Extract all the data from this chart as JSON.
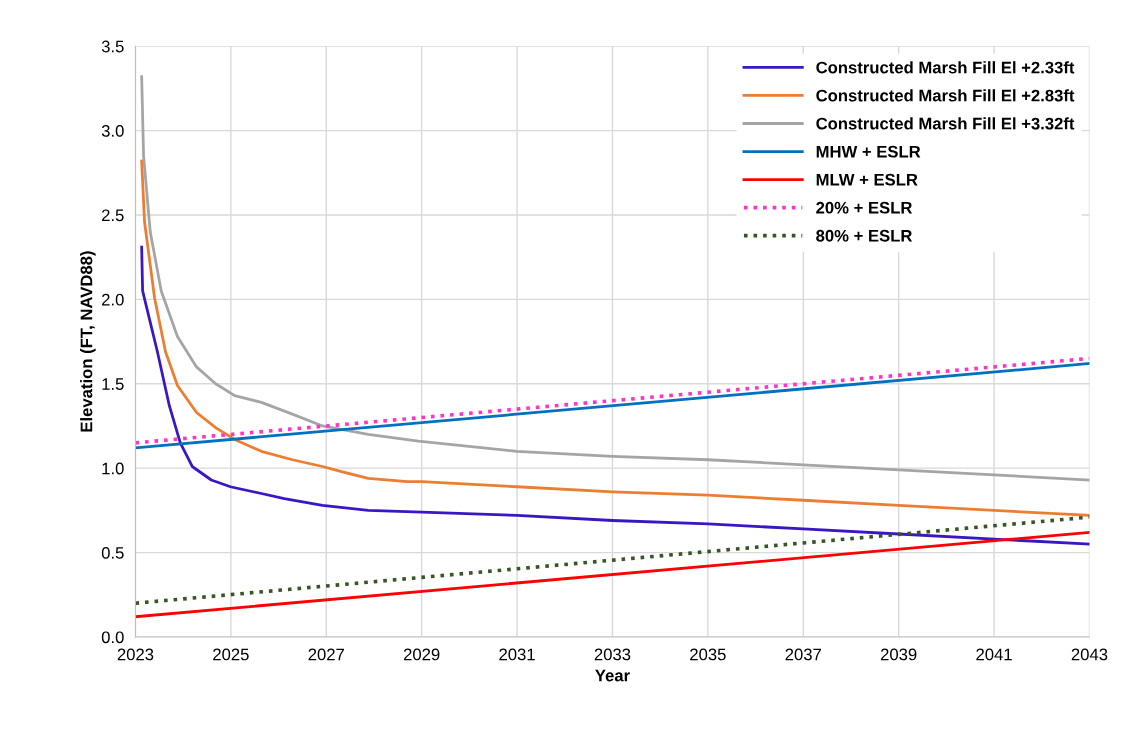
{
  "chart_data": {
    "type": "line",
    "xlabel": "Year",
    "ylabel": "Elevation (FT, NAVD88)",
    "xlim": [
      2023,
      2043
    ],
    "xticks": [
      2023,
      2025,
      2027,
      2029,
      2031,
      2033,
      2035,
      2037,
      2039,
      2041,
      2043
    ],
    "ylim": [
      0,
      3.5
    ],
    "yticks": [
      {
        "value": 0,
        "label": "0.0"
      },
      {
        "value": 0.5,
        "label": "0.5"
      },
      {
        "value": 1,
        "label": "1.0"
      },
      {
        "value": 1.5,
        "label": "1.5"
      },
      {
        "value": 2,
        "label": "2.0"
      },
      {
        "value": 2.5,
        "label": "2.5"
      },
      {
        "value": 3,
        "label": "3.0"
      },
      {
        "value": 3.5,
        "label": "3.5"
      }
    ],
    "grid": true,
    "legend": "top right",
    "marker": "none",
    "series": [
      {
        "name": "Constructed Marsh Fill El +2.33ft",
        "color": "#3a17c4",
        "line_style": "solid",
        "x": [
          2023.13,
          2023.15,
          2023.46,
          2023.71,
          2023.94,
          2024.19,
          2024.59,
          2024.99,
          2025.64,
          2026.12,
          2026.92,
          2027.88,
          2029,
          2031,
          2033,
          2035,
          2037,
          2039,
          2041,
          2043
        ],
        "values": [
          2.31,
          2.05,
          1.69,
          1.37,
          1.15,
          1.01,
          0.93,
          0.89,
          0.85,
          0.82,
          0.78,
          0.75,
          0.74,
          0.72,
          0.69,
          0.67,
          0.64,
          0.61,
          0.58,
          0.55
        ]
      },
      {
        "name": "Constructed Marsh Fill El +2.83ft",
        "color": "#ed7d31",
        "line_style": "solid",
        "x": [
          2023.13,
          2023.19,
          2023.4,
          2023.63,
          2023.88,
          2024.28,
          2024.68,
          2025.08,
          2025.64,
          2026.29,
          2026.92,
          2027.32,
          2027.88,
          2028.7,
          2029,
          2031,
          2033,
          2035,
          2037,
          2039,
          2041,
          2043
        ],
        "values": [
          2.82,
          2.46,
          2.01,
          1.69,
          1.49,
          1.33,
          1.24,
          1.17,
          1.1,
          1.05,
          1.01,
          0.98,
          0.94,
          0.92,
          0.92,
          0.89,
          0.86,
          0.84,
          0.81,
          0.78,
          0.75,
          0.72
        ]
      },
      {
        "name": "Constructed Marsh Fill El +3.32ft",
        "color": "#a5a5a5",
        "line_style": "solid",
        "x": [
          2023.13,
          2023.17,
          2023.31,
          2023.54,
          2023.88,
          2024.28,
          2024.68,
          2025.08,
          2025.64,
          2026.29,
          2026.92,
          2027.88,
          2028.93,
          2031,
          2033,
          2035,
          2037,
          2039,
          2041,
          2043
        ],
        "values": [
          3.32,
          2.85,
          2.4,
          2.05,
          1.78,
          1.6,
          1.5,
          1.43,
          1.39,
          1.32,
          1.25,
          1.2,
          1.16,
          1.1,
          1.07,
          1.05,
          1.02,
          0.99,
          0.96,
          0.93
        ]
      },
      {
        "name": "MHW + ESLR",
        "color": "#0070c0",
        "line_style": "solid",
        "x": [
          2023,
          2043
        ],
        "values": [
          1.12,
          1.62
        ]
      },
      {
        "name": "MLW + ESLR",
        "color": "#ff0000",
        "line_style": "solid",
        "x": [
          2023,
          2043
        ],
        "values": [
          0.12,
          0.62
        ]
      },
      {
        "name": "20% + ESLR",
        "color": "#ff33cc",
        "line_style": "dotted",
        "x": [
          2023,
          2043
        ],
        "values": [
          1.15,
          1.65
        ]
      },
      {
        "name": "80% + ESLR",
        "color": "#375623",
        "line_style": "dotted",
        "x": [
          2023,
          2043
        ],
        "values": [
          0.2,
          0.71
        ]
      }
    ]
  }
}
